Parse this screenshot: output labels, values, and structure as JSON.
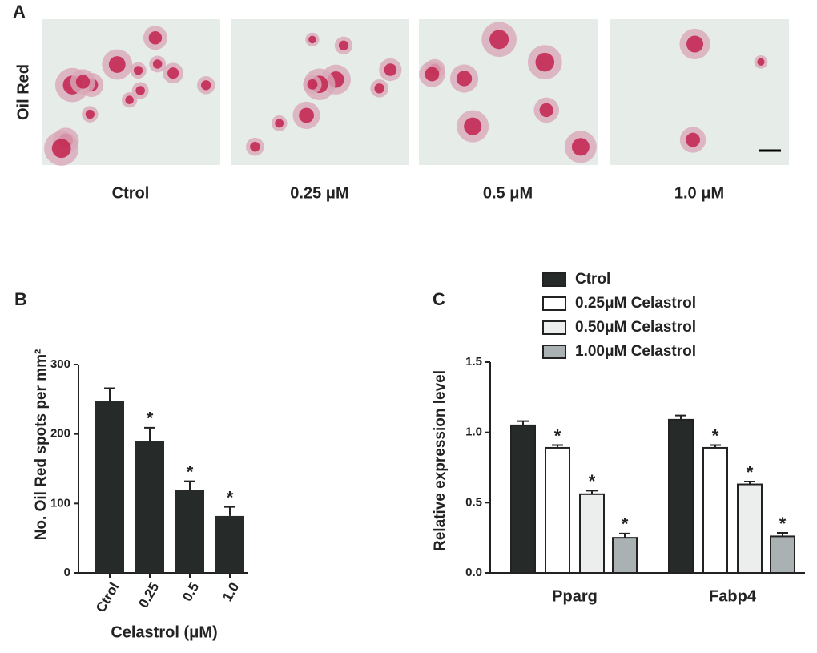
{
  "panel_a": {
    "label": "A",
    "row_label": "Oil Red",
    "captions": [
      "Ctrol",
      "0.25 μM",
      "0.5 μM",
      "1.0 μM"
    ]
  },
  "chart_data": [
    {
      "type": "bar",
      "panel_label": "B",
      "ylabel": "No. Oil Red spots per mm²",
      "xlabel": "Celastrol (μM)",
      "categories": [
        "Ctrol",
        "0.25",
        "0.5",
        "1.0"
      ],
      "values": [
        248,
        190,
        120,
        82
      ],
      "errors": [
        18,
        19,
        12,
        13
      ],
      "value_markers": [
        null,
        "*",
        "*",
        "*"
      ],
      "color": "#262b2a",
      "ylim": [
        0,
        300
      ],
      "yticks": [
        0,
        100,
        200,
        300
      ]
    },
    {
      "type": "grouped-bar",
      "panel_label": "C",
      "ylabel": "Relative expression level",
      "categories": [
        "Pparg",
        "Fabp4"
      ],
      "series": [
        {
          "name": "Ctrol",
          "color": "#262b2a",
          "values": [
            1.05,
            1.09
          ],
          "errors": [
            0.03,
            0.03
          ],
          "markers": [
            null,
            null
          ]
        },
        {
          "name": "0.25μM Celastrol",
          "color": "#ffffff",
          "values": [
            0.89,
            0.89
          ],
          "errors": [
            0.02,
            0.02
          ],
          "markers": [
            "*",
            "*"
          ]
        },
        {
          "name": "0.50μM Celastrol",
          "color": "#eceeee",
          "values": [
            0.56,
            0.63
          ],
          "errors": [
            0.025,
            0.02
          ],
          "markers": [
            "*",
            "*"
          ]
        },
        {
          "name": "1.00μM Celastrol",
          "color": "#a9b1b2",
          "values": [
            0.25,
            0.26
          ],
          "errors": [
            0.03,
            0.025
          ],
          "markers": [
            "*",
            "*"
          ]
        }
      ],
      "legend": "top",
      "ylim": [
        0,
        1.5
      ],
      "yticks": [
        {
          "value": 0,
          "label": "0.0"
        },
        0.5,
        {
          "value": 1,
          "label": "1.0"
        },
        1.5
      ]
    }
  ]
}
